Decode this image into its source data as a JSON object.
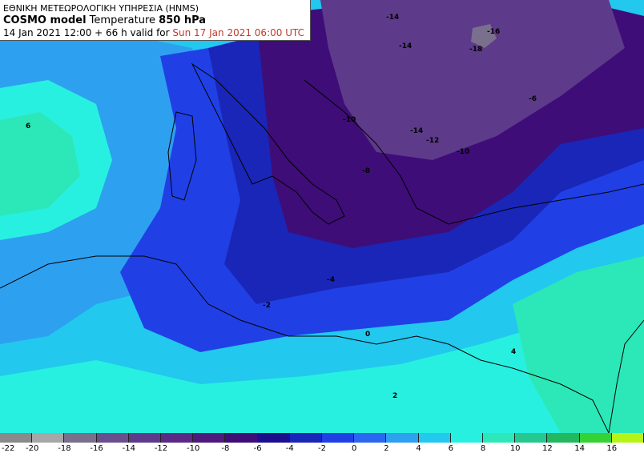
{
  "header": {
    "agency": "ΕΘΝΙΚΗ ΜΕΤΕΩΡΟΛΟΓΙΚΗ ΥΠΗΡΕΣΙΑ (HNMS)",
    "model": "COSMO model",
    "parameter": "Temperature",
    "level": "850 hPa",
    "run": "14 Jan 2021 12:00 + 66 h valid for",
    "valid_time": "Sun 17 Jan 2021 06:00 UTC"
  },
  "colorbar": {
    "labels": [
      "-22",
      "-20",
      "-18",
      "-16",
      "-14",
      "-12",
      "-10",
      "-8",
      "-6",
      "-4",
      "-2",
      "0",
      "2",
      "4",
      "6",
      "8",
      "10",
      "12",
      "14",
      "16"
    ],
    "colors": [
      "#8a8a8a",
      "#a7a7a7",
      "#7a6f8c",
      "#6a4f8f",
      "#5e3a8a",
      "#5a2a86",
      "#4e1a7e",
      "#3e0d78",
      "#1c0f8e",
      "#1a26b8",
      "#2040e6",
      "#2a66f0",
      "#2ea0f0",
      "#22c8ee",
      "#28f0e0",
      "#2ce8b8",
      "#26c890",
      "#22b860",
      "#34d234",
      "#b6f418"
    ]
  },
  "isotherm_labels": [
    "-16",
    "-18",
    "-14",
    "-14",
    "-14",
    "-12",
    "-10",
    "-10",
    "-8",
    "-6",
    "-4",
    "-2",
    "0",
    "2",
    "4",
    "6"
  ],
  "map": {
    "regions": [
      {
        "name": "cold-core",
        "color": "#3e0d78"
      },
      {
        "name": "very-cold-core",
        "color": "#5e3a8a"
      },
      {
        "name": "deep-blue",
        "color": "#1a26b8"
      },
      {
        "name": "blue",
        "color": "#2040e6"
      },
      {
        "name": "light-blue",
        "color": "#2ea0f0"
      },
      {
        "name": "cyan",
        "color": "#22c8ee"
      },
      {
        "name": "aqua",
        "color": "#28f0e0"
      },
      {
        "name": "teal",
        "color": "#2ce8b8"
      }
    ]
  }
}
